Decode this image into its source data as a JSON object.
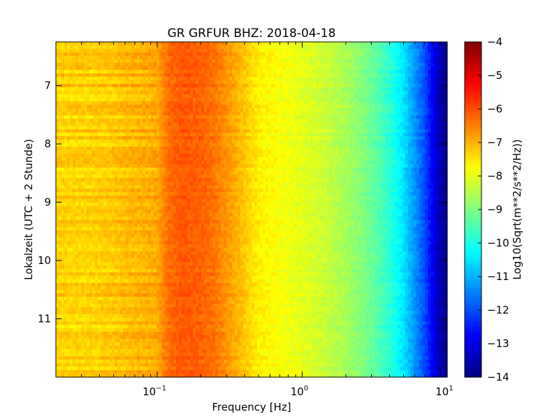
{
  "chart_data": {
    "type": "heatmap",
    "title": "GR GRFUR BHZ: 2018-04-18",
    "xlabel": "Frequency [Hz]",
    "ylabel": "Lokalzeit (UTC + 2 Stunde)",
    "x_scale": "log",
    "xlim": [
      0.02,
      10
    ],
    "x_ticks": [
      {
        "value": 0.1,
        "base": "10",
        "exp": "−1"
      },
      {
        "value": 1,
        "base": "10",
        "exp": "0"
      },
      {
        "value": 10,
        "base": "10",
        "exp": "1"
      }
    ],
    "ylim": [
      6.25,
      12.0
    ],
    "y_inverted": true,
    "y_ticks": [
      "7",
      "8",
      "9",
      "10",
      "11"
    ],
    "y_tick_values": [
      7,
      8,
      9,
      10,
      11
    ],
    "colorbar": {
      "label": "Log10(Sqrt(m**2/s**2/Hz))",
      "range": [
        -14,
        -4
      ],
      "colormap": "jet",
      "ticks": [
        "−4",
        "−5",
        "−6",
        "−7",
        "−8",
        "−9",
        "−10",
        "−11",
        "−12",
        "−13",
        "−14"
      ],
      "tick_values": [
        -4,
        -5,
        -6,
        -7,
        -8,
        -9,
        -10,
        -11,
        -12,
        -13,
        -14
      ]
    },
    "spectrum_profile": {
      "frequency_hz": [
        0.02,
        0.035,
        0.05,
        0.06,
        0.08,
        0.1,
        0.12,
        0.15,
        0.2,
        0.25,
        0.3,
        0.4,
        0.5,
        0.7,
        1.0,
        1.5,
        2.0,
        3.0,
        4.0,
        5.0,
        6.0,
        7.0,
        8.0,
        9.0,
        10.0
      ],
      "level": [
        -7.3,
        -7.3,
        -7.2,
        -7.1,
        -7.0,
        -6.9,
        -6.3,
        -6.1,
        -6.2,
        -6.4,
        -6.7,
        -7.2,
        -7.6,
        -7.8,
        -8.0,
        -8.3,
        -8.6,
        -9.2,
        -9.8,
        -10.5,
        -11.3,
        -12.0,
        -12.9,
        -13.6,
        -13.8
      ]
    }
  }
}
